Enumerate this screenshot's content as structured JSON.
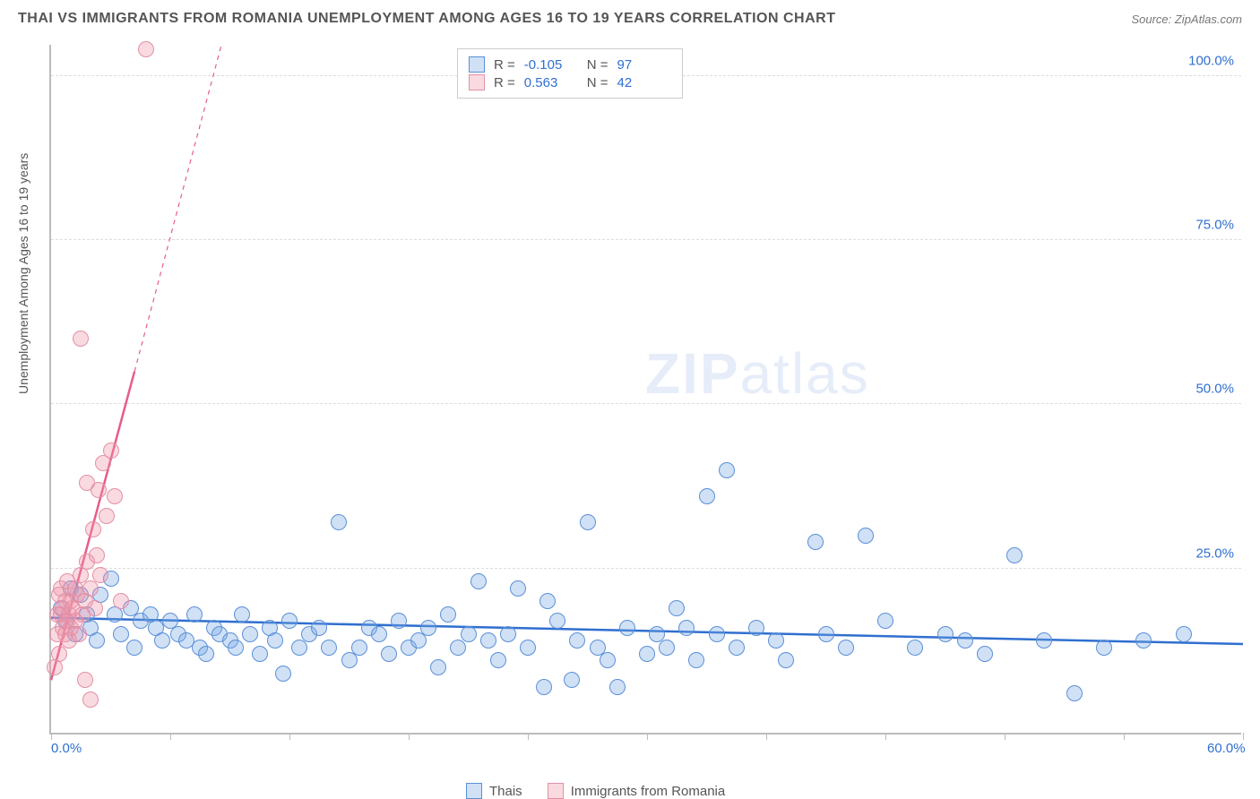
{
  "title": "THAI VS IMMIGRANTS FROM ROMANIA UNEMPLOYMENT AMONG AGES 16 TO 19 YEARS CORRELATION CHART",
  "source": "Source: ZipAtlas.com",
  "y_axis_title": "Unemployment Among Ages 16 to 19 years",
  "watermark_bold": "ZIP",
  "watermark_rest": "atlas",
  "chart": {
    "type": "scatter",
    "xlim": [
      0,
      60
    ],
    "ylim": [
      0,
      105
    ],
    "x_ticks": [
      0,
      6,
      12,
      18,
      24,
      30,
      36,
      42,
      48,
      54,
      60
    ],
    "x_labels": [
      {
        "v": 0,
        "t": "0.0%"
      },
      {
        "v": 60,
        "t": "60.0%"
      }
    ],
    "y_gridlines": [
      25,
      50,
      75,
      100
    ],
    "y_labels": [
      {
        "v": 25,
        "t": "25.0%"
      },
      {
        "v": 50,
        "t": "50.0%"
      },
      {
        "v": 75,
        "t": "75.0%"
      },
      {
        "v": 100,
        "t": "100.0%"
      }
    ],
    "grid_color": "#dddddd",
    "axis_color": "#bbbbbb",
    "background": "#ffffff",
    "tick_font_color": "#2f6fd0",
    "axis_title_color": "#555555",
    "marker_radius": 9,
    "marker_stroke_width": 1.5,
    "series": [
      {
        "name": "Thais",
        "fill": "rgba(119,170,230,0.35)",
        "stroke": "#5b8fd6",
        "R": "-0.105",
        "N": "97",
        "trend": {
          "x1": 0,
          "y1": 17.5,
          "x2": 60,
          "y2": 13.5,
          "color": "#2f6fd0",
          "width": 2.5,
          "dashed_extend": false
        },
        "points": [
          [
            0.5,
            19
          ],
          [
            0.7,
            17
          ],
          [
            1,
            22
          ],
          [
            1.2,
            15
          ],
          [
            1.5,
            21
          ],
          [
            1.8,
            18
          ],
          [
            2,
            16
          ],
          [
            2.3,
            14
          ],
          [
            2.5,
            21
          ],
          [
            3,
            23.5
          ],
          [
            3.2,
            18
          ],
          [
            3.5,
            15
          ],
          [
            4,
            19
          ],
          [
            4.2,
            13
          ],
          [
            4.5,
            17
          ],
          [
            5,
            18
          ],
          [
            5.3,
            16
          ],
          [
            5.6,
            14
          ],
          [
            6,
            17
          ],
          [
            6.4,
            15
          ],
          [
            6.8,
            14
          ],
          [
            7.2,
            18
          ],
          [
            7.5,
            13
          ],
          [
            7.8,
            12
          ],
          [
            8.2,
            16
          ],
          [
            8.5,
            15
          ],
          [
            9,
            14
          ],
          [
            9.3,
            13
          ],
          [
            9.6,
            18
          ],
          [
            10,
            15
          ],
          [
            10.5,
            12
          ],
          [
            11,
            16
          ],
          [
            11.3,
            14
          ],
          [
            11.7,
            9
          ],
          [
            12,
            17
          ],
          [
            12.5,
            13
          ],
          [
            13,
            15
          ],
          [
            13.5,
            16
          ],
          [
            14,
            13
          ],
          [
            14.5,
            32
          ],
          [
            15,
            11
          ],
          [
            15.5,
            13
          ],
          [
            16,
            16
          ],
          [
            16.5,
            15
          ],
          [
            17,
            12
          ],
          [
            17.5,
            17
          ],
          [
            18,
            13
          ],
          [
            18.5,
            14
          ],
          [
            19,
            16
          ],
          [
            19.5,
            10
          ],
          [
            20,
            18
          ],
          [
            20.5,
            13
          ],
          [
            21,
            15
          ],
          [
            21.5,
            23
          ],
          [
            22,
            14
          ],
          [
            22.5,
            11
          ],
          [
            23,
            15
          ],
          [
            23.5,
            22
          ],
          [
            24,
            13
          ],
          [
            24.8,
            7
          ],
          [
            25,
            20
          ],
          [
            25.5,
            17
          ],
          [
            26.2,
            8
          ],
          [
            26.5,
            14
          ],
          [
            27,
            32
          ],
          [
            27.5,
            13
          ],
          [
            28,
            11
          ],
          [
            28.5,
            7
          ],
          [
            29,
            16
          ],
          [
            30,
            12
          ],
          [
            30.5,
            15
          ],
          [
            31,
            13
          ],
          [
            31.5,
            19
          ],
          [
            32,
            16
          ],
          [
            32.5,
            11
          ],
          [
            33,
            36
          ],
          [
            33.5,
            15
          ],
          [
            34,
            40
          ],
          [
            34.5,
            13
          ],
          [
            35.5,
            16
          ],
          [
            36.5,
            14
          ],
          [
            37,
            11
          ],
          [
            38.5,
            29
          ],
          [
            39,
            15
          ],
          [
            40,
            13
          ],
          [
            41,
            30
          ],
          [
            42,
            17
          ],
          [
            43.5,
            13
          ],
          [
            45,
            15
          ],
          [
            46,
            14
          ],
          [
            47,
            12
          ],
          [
            48.5,
            27
          ],
          [
            50,
            14
          ],
          [
            51.5,
            6
          ],
          [
            53,
            13
          ],
          [
            55,
            14
          ],
          [
            57,
            15
          ]
        ]
      },
      {
        "name": "Immigrants from Romania",
        "fill": "rgba(240,150,170,0.35)",
        "stroke": "#e38fa5",
        "R": "0.563",
        "N": "42",
        "trend": {
          "x1": 0,
          "y1": 8,
          "x2": 4.2,
          "y2": 55,
          "color": "#e75c8a",
          "width": 2.5,
          "dashed_extend": true,
          "x2d": 8.6,
          "y2d": 105
        },
        "points": [
          [
            0.2,
            10
          ],
          [
            0.3,
            18
          ],
          [
            0.3,
            15
          ],
          [
            0.4,
            21
          ],
          [
            0.4,
            12
          ],
          [
            0.5,
            18
          ],
          [
            0.5,
            22
          ],
          [
            0.6,
            16
          ],
          [
            0.6,
            19
          ],
          [
            0.7,
            15
          ],
          [
            0.7,
            20
          ],
          [
            0.8,
            17
          ],
          [
            0.8,
            23
          ],
          [
            0.9,
            18
          ],
          [
            0.9,
            14
          ],
          [
            1.0,
            20
          ],
          [
            1.0,
            16
          ],
          [
            1.1,
            19
          ],
          [
            1.2,
            22
          ],
          [
            1.2,
            17
          ],
          [
            1.3,
            21
          ],
          [
            1.4,
            15
          ],
          [
            1.5,
            24
          ],
          [
            1.6,
            18
          ],
          [
            1.7,
            20
          ],
          [
            1.8,
            26
          ],
          [
            1.8,
            38
          ],
          [
            2.0,
            22
          ],
          [
            2.1,
            31
          ],
          [
            2.2,
            19
          ],
          [
            2.3,
            27
          ],
          [
            2.4,
            37
          ],
          [
            2.5,
            24
          ],
          [
            2.6,
            41
          ],
          [
            2.8,
            33
          ],
          [
            3.0,
            43
          ],
          [
            3.2,
            36
          ],
          [
            1.7,
            8
          ],
          [
            2.0,
            5
          ],
          [
            1.5,
            60
          ],
          [
            3.5,
            20
          ],
          [
            4.8,
            104
          ]
        ]
      }
    ]
  },
  "legend_top": [
    {
      "swatch_fill": "rgba(119,170,230,0.35)",
      "swatch_stroke": "#5b8fd6",
      "R_label": "R =",
      "R_val": "-0.105",
      "N_label": "N =",
      "N_val": "97"
    },
    {
      "swatch_fill": "rgba(240,150,170,0.35)",
      "swatch_stroke": "#e38fa5",
      "R_label": "R =",
      "R_val": "0.563",
      "N_label": "N =",
      "N_val": "42"
    }
  ],
  "legend_bottom": [
    {
      "swatch_fill": "rgba(119,170,230,0.35)",
      "swatch_stroke": "#5b8fd6",
      "label": "Thais"
    },
    {
      "swatch_fill": "rgba(240,150,170,0.35)",
      "swatch_stroke": "#e38fa5",
      "label": "Immigrants from Romania"
    }
  ]
}
